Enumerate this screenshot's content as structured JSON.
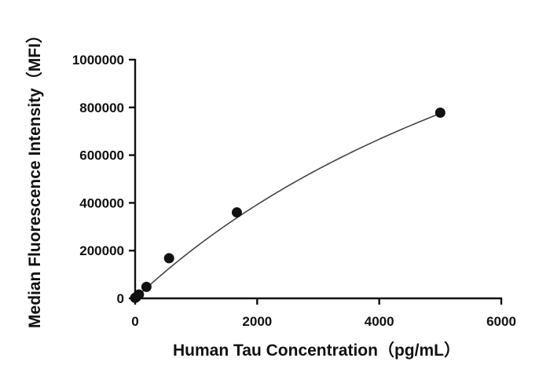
{
  "chart_data": {
    "type": "scatter",
    "title": "",
    "xlabel": "Human Tau Concentration（pg/mL）",
    "ylabel": "Median Fluorescence Intensity（MFI）",
    "xlim": [
      0,
      6000
    ],
    "ylim": [
      0,
      1000000
    ],
    "x_ticks": [
      0,
      2000,
      4000,
      6000
    ],
    "y_ticks": [
      0,
      200000,
      400000,
      600000,
      800000,
      1000000
    ],
    "x_tick_labels": [
      "0",
      "2000",
      "4000",
      "6000"
    ],
    "y_tick_labels": [
      "0",
      "200000",
      "400000",
      "600000",
      "800000",
      "1000000"
    ],
    "grid": false,
    "legend": "none",
    "series": [
      {
        "kind": "points",
        "marker": "filled-circle",
        "color": "#111111",
        "x": [
          0,
          20.6,
          61.7,
          185,
          556,
          1667,
          5000
        ],
        "y": [
          2000,
          6000,
          16000,
          48000,
          168000,
          360000,
          778000
        ]
      },
      {
        "kind": "fitted-curve",
        "color": "#444444",
        "a": 2200000,
        "b": 9200
      }
    ]
  }
}
